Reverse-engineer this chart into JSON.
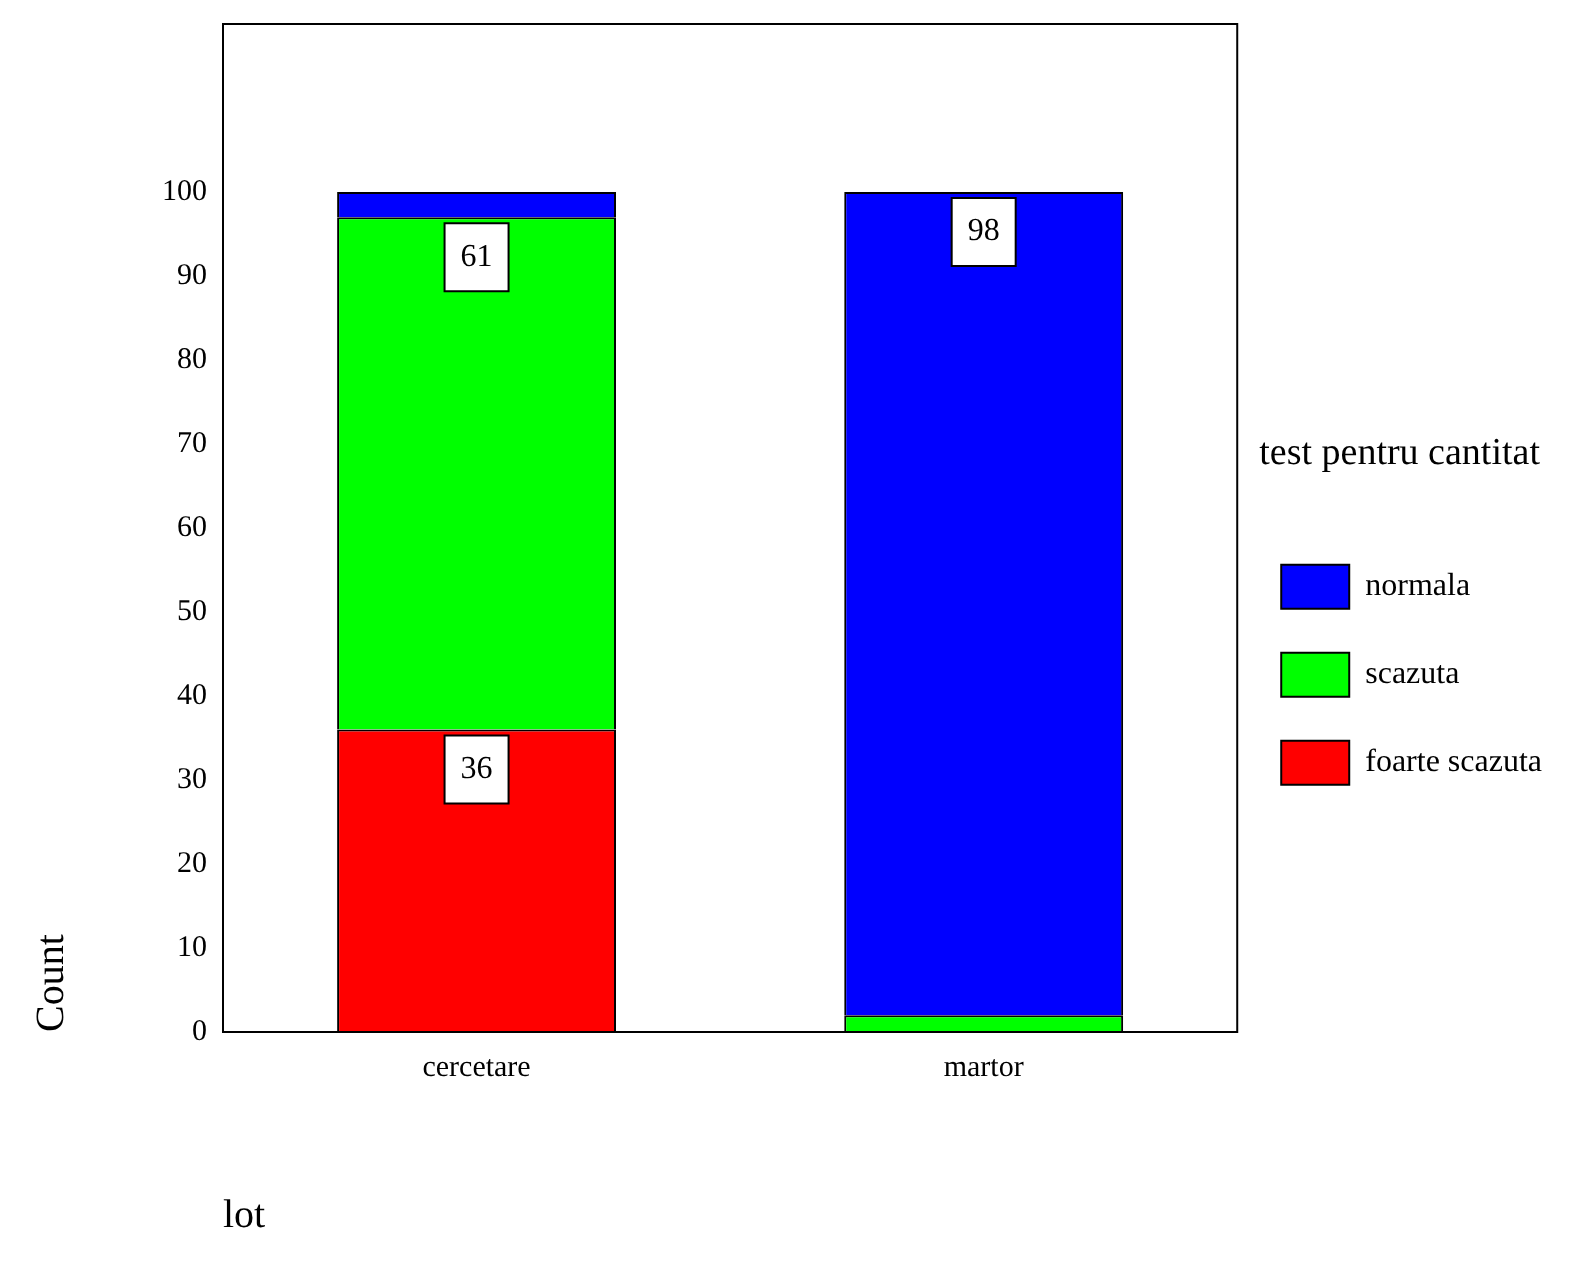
{
  "chart_data": {
    "type": "bar",
    "stacked": true,
    "xlabel": "lot",
    "ylabel": "Count",
    "legend_title": "test pentru cantitat",
    "categories": [
      "cercetare",
      "martor"
    ],
    "series": [
      {
        "name": "foarte scazuta",
        "color": "#ff0000",
        "values": [
          36,
          0
        ],
        "value_labels": [
          "36",
          null
        ]
      },
      {
        "name": "scazuta",
        "color": "#00ff00",
        "values": [
          61,
          2
        ],
        "value_labels": [
          "61",
          null
        ]
      },
      {
        "name": "normala",
        "color": "#0000ff",
        "values": [
          3,
          98
        ],
        "value_labels": [
          null,
          "98"
        ]
      }
    ],
    "ylim": [
      0,
      120
    ],
    "yticks": [
      0,
      10,
      20,
      30,
      40,
      50,
      60,
      70,
      80,
      90,
      100
    ],
    "grid": false,
    "legend": "right"
  }
}
